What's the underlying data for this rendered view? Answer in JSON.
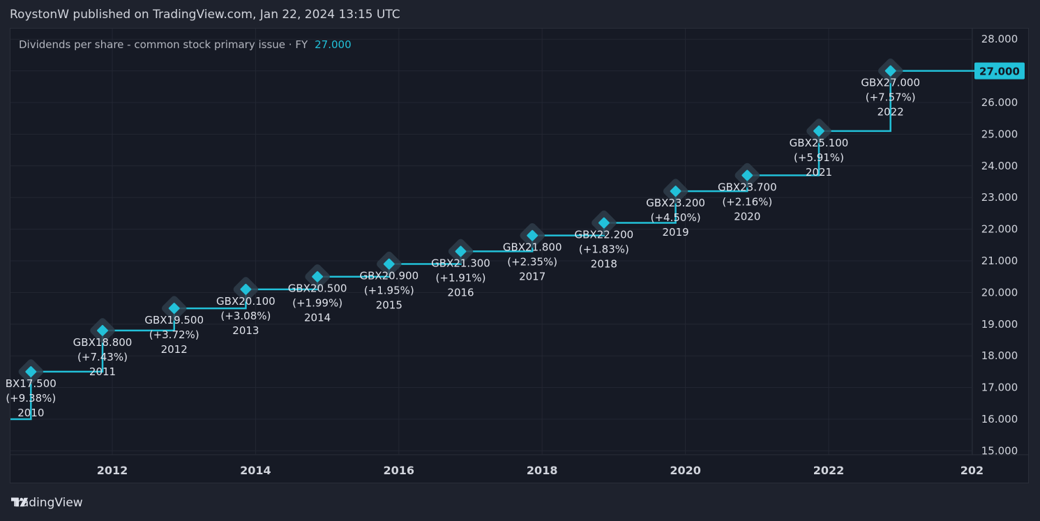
{
  "header": {
    "title": "RoystonW published on TradingView.com, Jan 22, 2024 13:15 UTC"
  },
  "legend": {
    "label": "Dividends per share - common stock primary issue · FY",
    "value": "27.000"
  },
  "footer": {
    "brand": "TradingView",
    "logo_icon": "tradingview-logo-icon"
  },
  "colors": {
    "accent": "#22c1d9",
    "background": "#161a25",
    "grid": "#232733",
    "text": "#d1d4dc"
  },
  "chart_data": {
    "type": "line",
    "step": true,
    "currency": "GBX",
    "x_ticks": [
      "2012",
      "2014",
      "2016",
      "2018",
      "2020",
      "2022",
      "202"
    ],
    "y_ticks": [
      "15.000",
      "16.000",
      "17.000",
      "18.000",
      "19.000",
      "20.000",
      "21.000",
      "22.000",
      "23.000",
      "24.000",
      "25.000",
      "26.000",
      "27.000",
      "28.000"
    ],
    "ylim": [
      15,
      28
    ],
    "last_value_label": "27.000",
    "start_value": 16.0,
    "points": [
      {
        "year": "2010",
        "value": 17.5,
        "label": "BX17.500",
        "change": "(+9.38%)"
      },
      {
        "year": "2011",
        "value": 18.8,
        "label": "GBX18.800",
        "change": "(+7.43%)"
      },
      {
        "year": "2012",
        "value": 19.5,
        "label": "GBX19.500",
        "change": "(+3.72%)"
      },
      {
        "year": "2013",
        "value": 20.1,
        "label": "GBX20.100",
        "change": "(+3.08%)"
      },
      {
        "year": "2014",
        "value": 20.5,
        "label": "GBX20.500",
        "change": "(+1.99%)"
      },
      {
        "year": "2015",
        "value": 20.9,
        "label": "GBX20.900",
        "change": "(+1.95%)"
      },
      {
        "year": "2016",
        "value": 21.3,
        "label": "GBX21.300",
        "change": "(+1.91%)"
      },
      {
        "year": "2017",
        "value": 21.8,
        "label": "GBX21.800",
        "change": "(+2.35%)"
      },
      {
        "year": "2018",
        "value": 22.2,
        "label": "GBX22.200",
        "change": "(+1.83%)"
      },
      {
        "year": "2019",
        "value": 23.2,
        "label": "GBX23.200",
        "change": "(+4.50%)"
      },
      {
        "year": "2020",
        "value": 23.7,
        "label": "GBX23.700",
        "change": "(+2.16%)"
      },
      {
        "year": "2021",
        "value": 25.1,
        "label": "GBX25.100",
        "change": "(+5.91%)"
      },
      {
        "year": "2022",
        "value": 27.0,
        "label": "GBX27.000",
        "change": "(+7.57%)"
      }
    ]
  }
}
